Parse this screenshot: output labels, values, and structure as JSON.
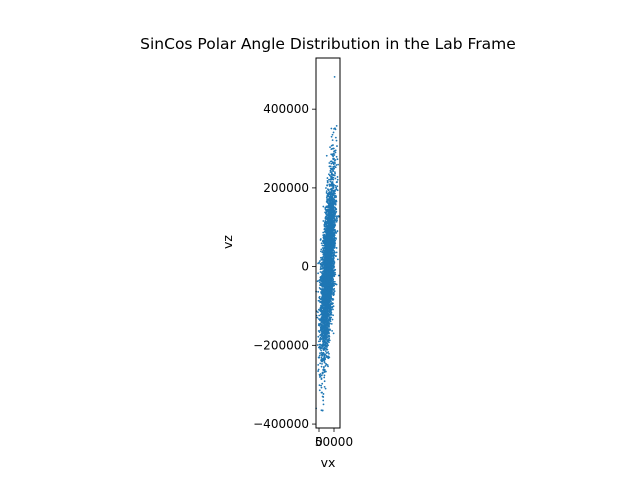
{
  "chart_data": {
    "type": "scatter",
    "title": "SinCos Polar Angle Distribution in the Lab Frame",
    "xlabel": "vx",
    "ylabel": "vz",
    "xlim": [
      -10000,
      70000
    ],
    "ylim": [
      -410000,
      530000
    ],
    "x_ticks": [
      0,
      50000
    ],
    "x_tick_labels": [
      "0",
      "50000"
    ],
    "y_ticks": [
      -400000,
      -200000,
      0,
      200000,
      400000
    ],
    "y_tick_labels": [
      "−400000",
      "−200000",
      "0",
      "200000",
      "400000"
    ],
    "grid": false,
    "legend": "none",
    "color": "#1f77b4",
    "series": [
      {
        "points_approx": 4000,
        "distribution": "elongated along vz, center shifts from vx ~ 10000 at vz -300000 to vx ~ 50000 at vz +300000",
        "x": [
          52000,
          15000,
          22000,
          50000,
          42000,
          8000,
          14000,
          12000,
          10000,
          12000,
          18000,
          48000,
          55000,
          47000,
          52000,
          53000,
          60000,
          45000
        ],
        "y": [
          482000,
          -350000,
          -310000,
          350000,
          330000,
          -365000,
          -340000,
          -330000,
          -320000,
          -270000,
          -240000,
          300000,
          290000,
          280000,
          255000,
          240000,
          215000,
          335000
        ]
      }
    ]
  }
}
